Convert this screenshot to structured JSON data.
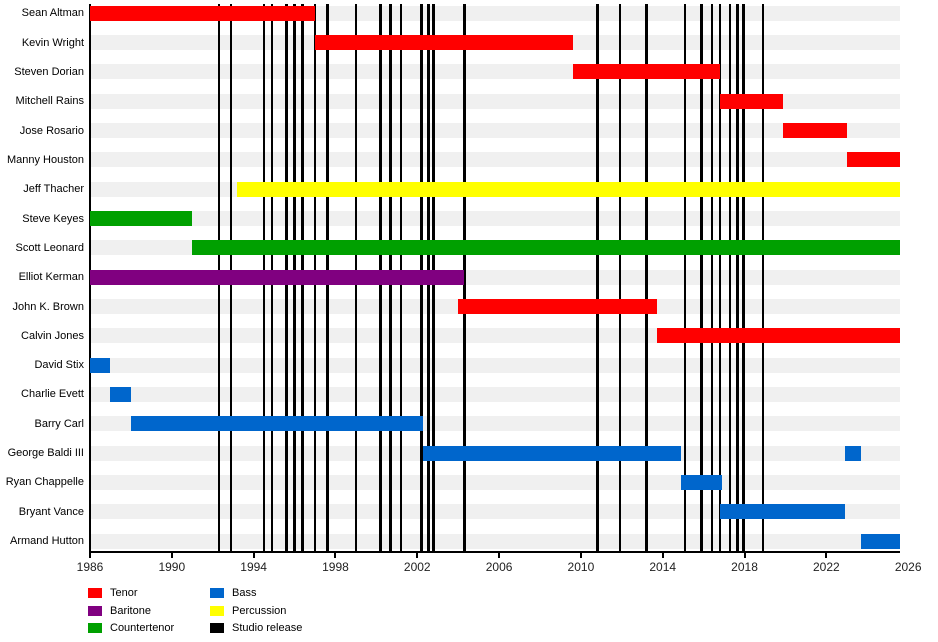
{
  "chart_data": {
    "type": "timeline",
    "title": "",
    "x_axis": {
      "min": 1986,
      "max": 2025.6,
      "tick_years": [
        1986,
        1990,
        1994,
        1998,
        2002,
        2006,
        2010,
        2014,
        2018,
        2022,
        2026
      ]
    },
    "colors": {
      "tenor": "#ff0000",
      "baritone": "#800080",
      "countertenor": "#00a000",
      "bass": "#0066cc",
      "percussion": "#ffff00",
      "studio_release": "#000000",
      "row_band": "#f0f0f0"
    },
    "legend": [
      {
        "label": "Tenor",
        "key": "tenor"
      },
      {
        "label": "Baritone",
        "key": "baritone"
      },
      {
        "label": "Countertenor",
        "key": "countertenor"
      },
      {
        "label": "Bass",
        "key": "bass"
      },
      {
        "label": "Percussion",
        "key": "percussion"
      },
      {
        "label": "Studio release",
        "key": "studio_release"
      }
    ],
    "members": [
      {
        "name": "Sean Altman",
        "voice": "tenor",
        "bars": [
          [
            1986.0,
            1997.0
          ]
        ]
      },
      {
        "name": "Kevin Wright",
        "voice": "tenor",
        "bars": [
          [
            1997.0,
            2009.6
          ]
        ]
      },
      {
        "name": "Steven Dorian",
        "voice": "tenor",
        "bars": [
          [
            2009.6,
            2016.8
          ]
        ]
      },
      {
        "name": "Mitchell Rains",
        "voice": "tenor",
        "bars": [
          [
            2016.8,
            2019.9
          ]
        ]
      },
      {
        "name": "Jose Rosario",
        "voice": "tenor",
        "bars": [
          [
            2019.9,
            2023.0
          ]
        ]
      },
      {
        "name": "Manny Houston",
        "voice": "tenor",
        "bars": [
          [
            2023.0,
            2025.6
          ]
        ]
      },
      {
        "name": "Jeff Thacher",
        "voice": "percussion",
        "bars": [
          [
            1993.2,
            2025.6
          ]
        ]
      },
      {
        "name": "Steve Keyes",
        "voice": "countertenor",
        "bars": [
          [
            1986.0,
            1991.0
          ]
        ]
      },
      {
        "name": "Scott Leonard",
        "voice": "countertenor",
        "bars": [
          [
            1991.0,
            2025.6
          ]
        ]
      },
      {
        "name": "Elliot Kerman",
        "voice": "baritone",
        "bars": [
          [
            1986.0,
            2004.3
          ]
        ]
      },
      {
        "name": "John K. Brown",
        "voice": "tenor",
        "bars": [
          [
            2004.0,
            2013.7
          ]
        ]
      },
      {
        "name": "Calvin Jones",
        "voice": "tenor",
        "bars": [
          [
            2013.7,
            2025.6
          ]
        ]
      },
      {
        "name": "David Stix",
        "voice": "bass",
        "bars": [
          [
            1986.0,
            1987.0
          ]
        ]
      },
      {
        "name": "Charlie Evett",
        "voice": "bass",
        "bars": [
          [
            1987.0,
            1988.0
          ]
        ]
      },
      {
        "name": "Barry Carl",
        "voice": "bass",
        "bars": [
          [
            1988.0,
            2002.3
          ]
        ]
      },
      {
        "name": "George Baldi III",
        "voice": "bass",
        "bars": [
          [
            2002.3,
            2014.9
          ],
          [
            2022.9,
            2023.7
          ]
        ]
      },
      {
        "name": "Ryan Chappelle",
        "voice": "bass",
        "bars": [
          [
            2014.9,
            2016.9
          ]
        ]
      },
      {
        "name": "Bryant Vance",
        "voice": "bass",
        "bars": [
          [
            2016.8,
            2022.9
          ]
        ]
      },
      {
        "name": "Armand Hutton",
        "voice": "bass",
        "bars": [
          [
            2023.7,
            2025.6
          ]
        ]
      }
    ],
    "studio_release_years": [
      1992.3,
      1992.9,
      1994.5,
      1994.9,
      1995.6,
      1996.0,
      1996.4,
      1997.0,
      1997.6,
      1999.0,
      2000.2,
      2000.7,
      2001.2,
      2002.2,
      2002.55,
      2002.8,
      2004.3,
      2010.8,
      2011.9,
      2013.2,
      2015.1,
      2015.9,
      2016.4,
      2016.8,
      2017.3,
      2017.65,
      2017.95,
      2018.9
    ]
  }
}
